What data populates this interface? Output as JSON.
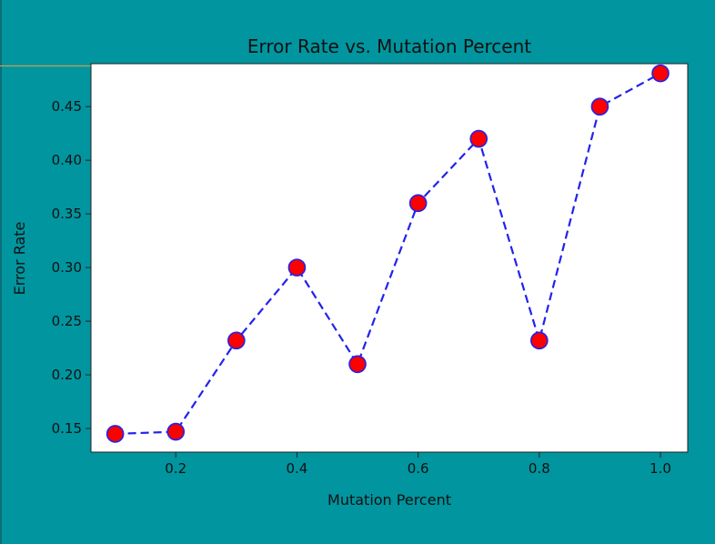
{
  "chart_data": {
    "type": "line",
    "title": "Error Rate vs. Mutation Percent",
    "xlabel": "Mutation Percent",
    "ylabel": "Error Rate",
    "xlim": [
      0.06,
      1.045
    ],
    "ylim": [
      0.128,
      0.49
    ],
    "x_ticks": [
      "0.2",
      "0.4",
      "0.6",
      "0.8",
      "1.0"
    ],
    "x_tick_values": [
      0.2,
      0.4,
      0.6,
      0.8,
      1.0
    ],
    "y_ticks": [
      "0.15",
      "0.20",
      "0.25",
      "0.30",
      "0.35",
      "0.40",
      "0.45"
    ],
    "y_tick_values": [
      0.15,
      0.2,
      0.25,
      0.3,
      0.35,
      0.4,
      0.45
    ],
    "grid": false,
    "series": [
      {
        "x": [
          0.1,
          0.2,
          0.3,
          0.4,
          0.5,
          0.6,
          0.7,
          0.8,
          0.9,
          1.0
        ],
        "values": [
          0.145,
          0.147,
          0.232,
          0.3,
          0.21,
          0.36,
          0.42,
          0.232,
          0.45,
          0.481
        ],
        "line_color": "#2222ee",
        "line_style": "dashed",
        "marker": "circle",
        "marker_face": "#ff0000",
        "marker_edge": "#2222ee"
      }
    ]
  },
  "colors": {
    "background": "#00959f",
    "plot_area": "#ffffff",
    "accent_rule": "#e5a33a"
  }
}
